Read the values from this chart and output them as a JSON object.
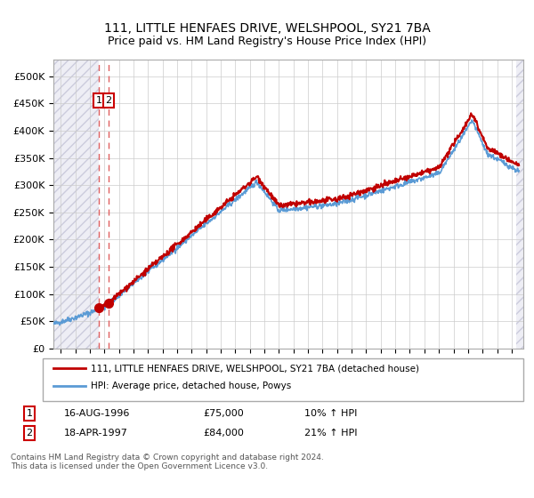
{
  "title": "111, LITTLE HENFAES DRIVE, WELSHPOOL, SY21 7BA",
  "subtitle": "Price paid vs. HM Land Registry's House Price Index (HPI)",
  "legend_line1": "111, LITTLE HENFAES DRIVE, WELSHPOOL, SY21 7BA (detached house)",
  "legend_line2": "HPI: Average price, detached house, Powys",
  "sale1_date": "16-AUG-1996",
  "sale1_price": 75000,
  "sale1_pct": "10% ↑ HPI",
  "sale2_date": "18-APR-1997",
  "sale2_price": 84000,
  "sale2_pct": "21% ↑ HPI",
  "sale1_x": 1996.62,
  "sale2_x": 1997.29,
  "hpi_color": "#5b9bd5",
  "price_color": "#c00000",
  "marker_color": "#c00000",
  "dashed_color": "#e06060",
  "ylim": [
    0,
    530000
  ],
  "xlim_start": 1993.5,
  "xlim_end": 2025.8,
  "footer": "Contains HM Land Registry data © Crown copyright and database right 2024.\nThis data is licensed under the Open Government Licence v3.0."
}
